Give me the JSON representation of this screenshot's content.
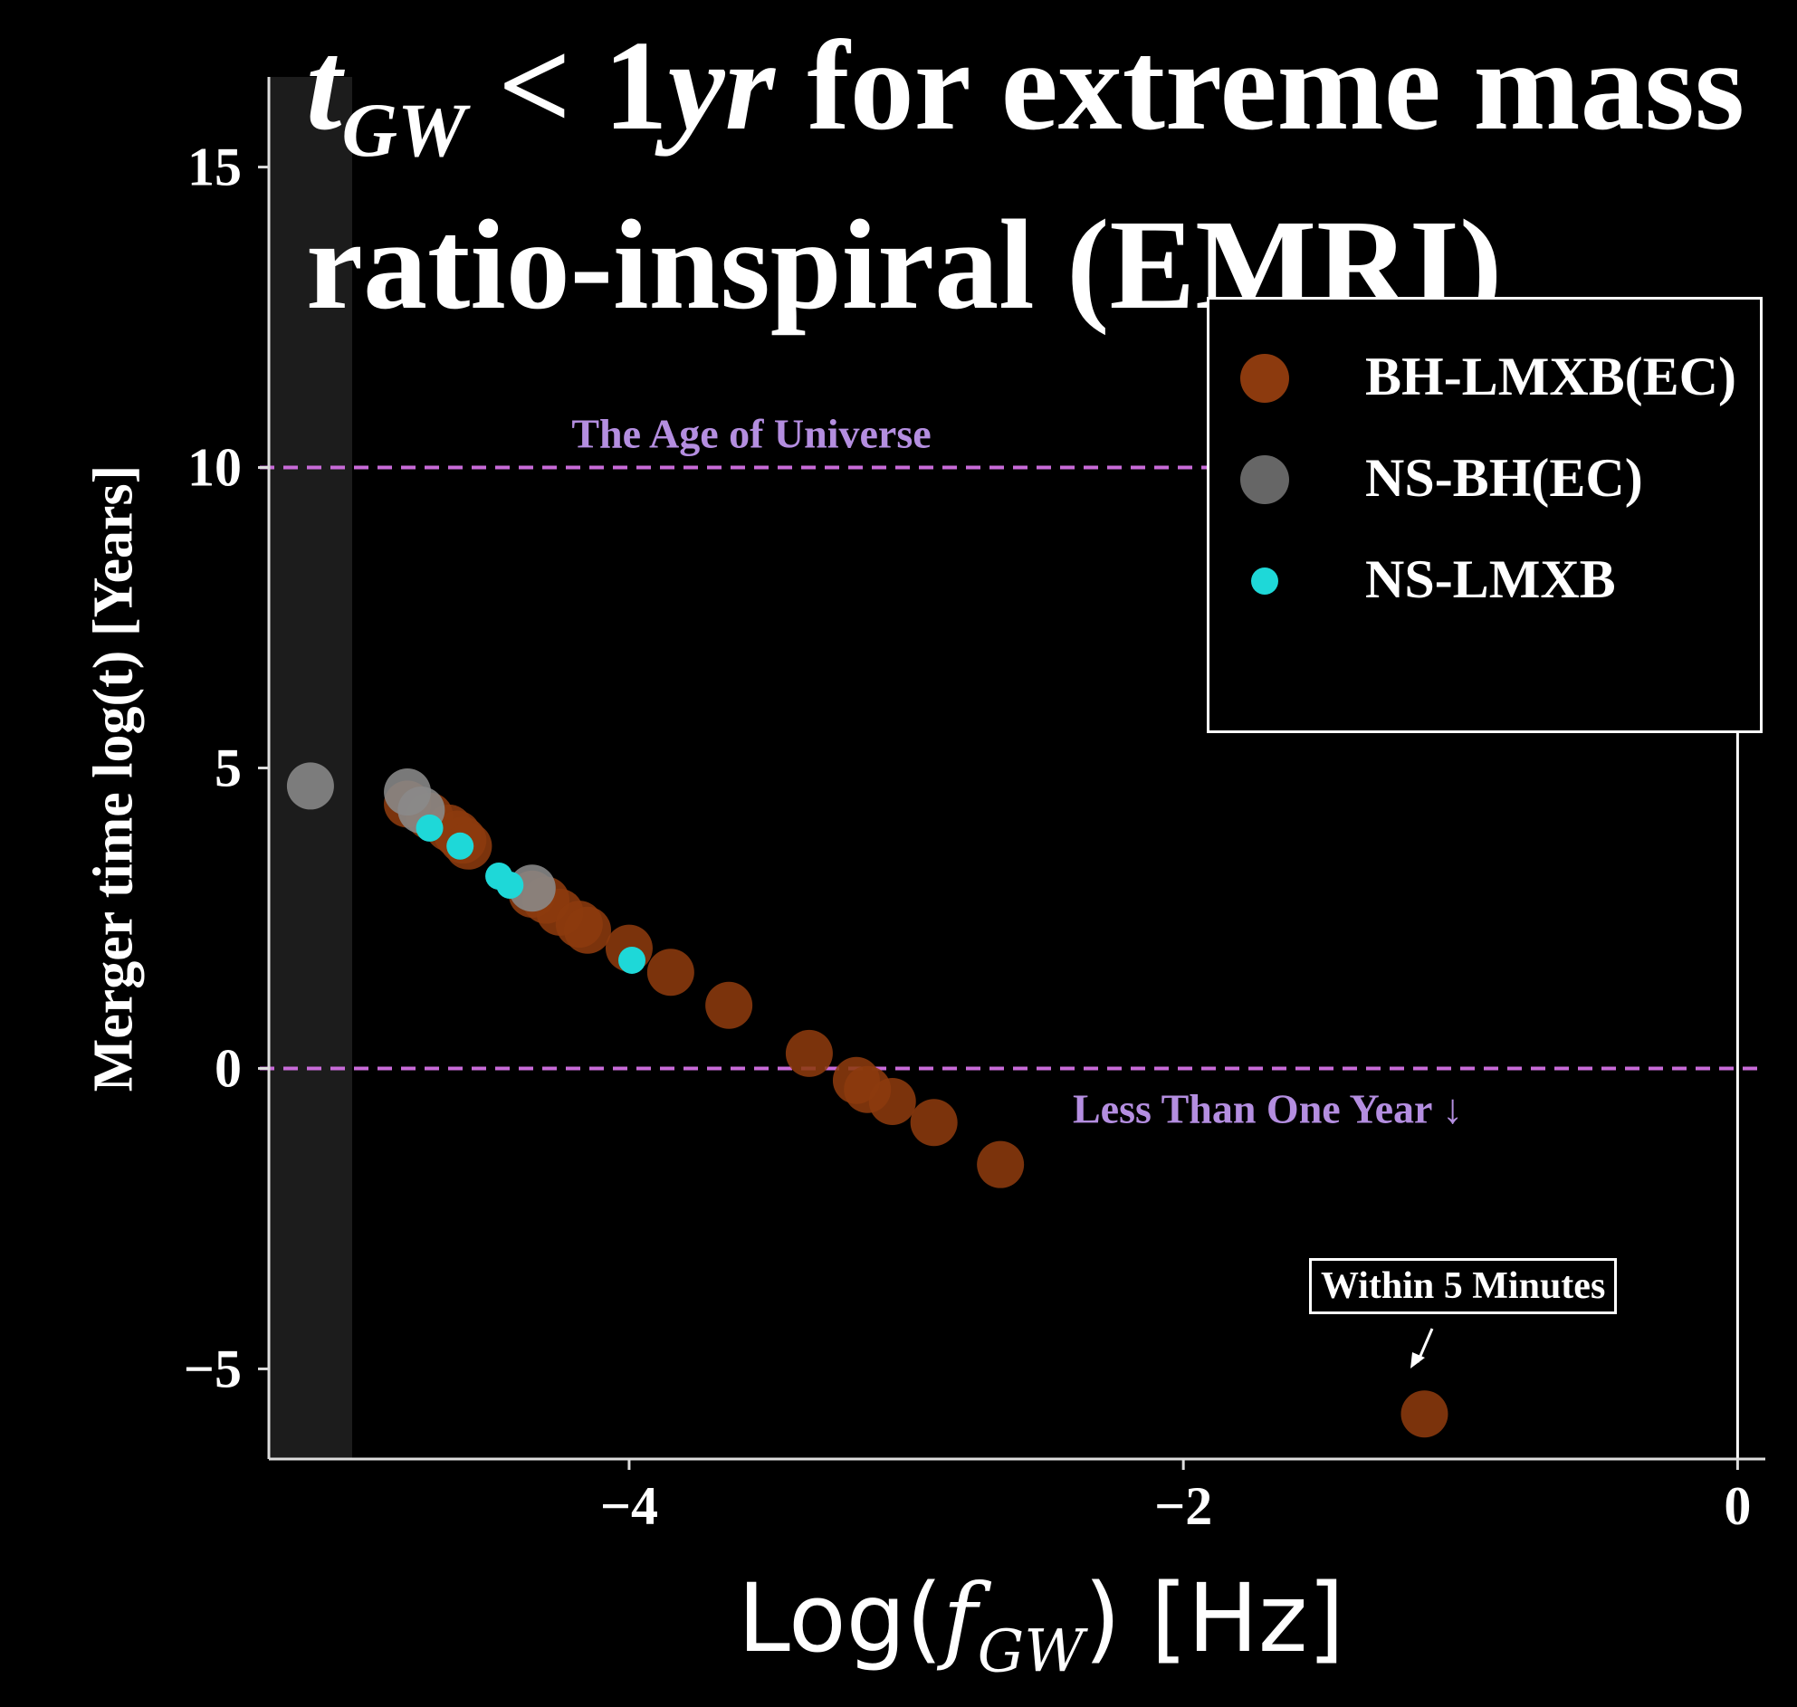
{
  "title": {
    "math_t": "t",
    "math_sub": "GW",
    "math_rest": " < 1",
    "math_yr": "yr",
    "line1_text": " for extreme mass",
    "line2_text": "ratio-inspiral (EMRI)"
  },
  "xlabel": {
    "prefix": "Log(",
    "math": "f",
    "sub": "GW",
    "suffix": ") [Hz]"
  },
  "ylabel": "Merger time log(t) [Years]",
  "annotations": {
    "age_universe": "The Age of Universe",
    "less_than_year": "Less Than One Year ↓",
    "within_minutes": "Within 5 Minutes"
  },
  "legend": [
    {
      "label": "BH-LMXB(EC)",
      "color": "#8c3a0e"
    },
    {
      "label": "NS-BH(EC)",
      "color": "#666666"
    },
    {
      "label": "NS-LMXB",
      "color": "#1ed8d8"
    }
  ],
  "chart_data": {
    "type": "scatter",
    "xlim": [
      -5.3,
      0.1
    ],
    "ylim": [
      -6.5,
      16.5
    ],
    "xticks": [
      -4,
      -2,
      0
    ],
    "yticks": [
      -5,
      0,
      5,
      10,
      15
    ],
    "xtick_labels": [
      "−4",
      "−2",
      "0"
    ],
    "ytick_labels": [
      "−5",
      "0",
      "5",
      "10",
      "15"
    ],
    "hlines": [
      {
        "y": 10,
        "label": "The Age of Universe",
        "color": "#c86bd8"
      },
      {
        "y": 0,
        "label": "Less Than One Year",
        "color": "#c86bd8"
      }
    ],
    "vline": {
      "x": 0,
      "color": "#ffffff"
    },
    "series": [
      {
        "name": "BH-LMXB(EC)",
        "color": "#8c3a0e",
        "size": "large",
        "points": [
          [
            -4.8,
            4.4
          ],
          [
            -4.72,
            4.2
          ],
          [
            -4.65,
            4.0
          ],
          [
            -4.62,
            3.9
          ],
          [
            -4.6,
            3.8
          ],
          [
            -4.58,
            3.7
          ],
          [
            -4.35,
            2.9
          ],
          [
            -4.3,
            2.8
          ],
          [
            -4.25,
            2.6
          ],
          [
            -4.18,
            2.4
          ],
          [
            -4.15,
            2.3
          ],
          [
            -4.0,
            2.0
          ],
          [
            -3.85,
            1.6
          ],
          [
            -3.64,
            1.05
          ],
          [
            -3.35,
            0.25
          ],
          [
            -3.18,
            -0.2
          ],
          [
            -3.14,
            -0.35
          ],
          [
            -3.05,
            -0.55
          ],
          [
            -2.9,
            -0.9
          ],
          [
            -2.66,
            -1.6
          ],
          [
            -1.13,
            -5.75
          ]
        ]
      },
      {
        "name": "NS-BH(EC)",
        "color": "#8a8a8a",
        "size": "large",
        "points": [
          [
            -5.15,
            4.7
          ],
          [
            -4.8,
            4.6
          ],
          [
            -4.75,
            4.3
          ],
          [
            -4.35,
            3.0
          ]
        ]
      },
      {
        "name": "NS-LMXB",
        "color": "#1ed8d8",
        "size": "small",
        "points": [
          [
            -4.72,
            4.0
          ],
          [
            -4.61,
            3.7
          ],
          [
            -4.47,
            3.2
          ],
          [
            -4.43,
            3.05
          ],
          [
            -3.99,
            1.8
          ]
        ]
      }
    ]
  }
}
